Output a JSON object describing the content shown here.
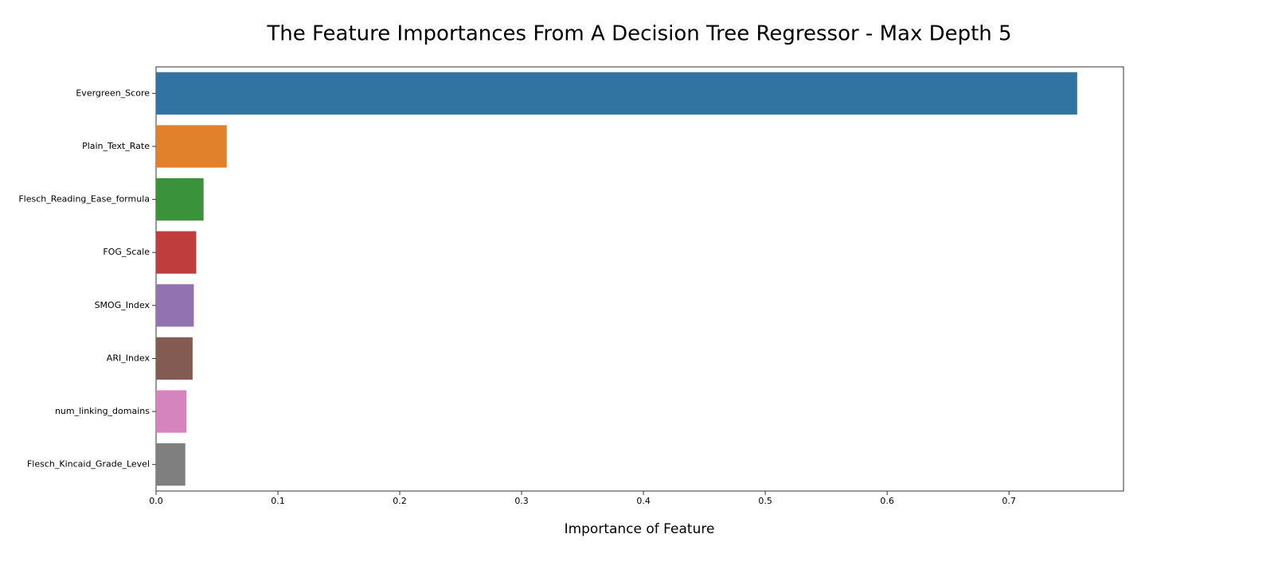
{
  "chart_data": {
    "type": "barh",
    "title": "The Feature Importances From A Decision Tree Regressor - Max Depth 5",
    "x_label": "Importance of Feature",
    "categories": [
      "Evergreen_Score",
      "Plain_Text_Rate",
      "Flesch_Reading_Ease_formula",
      "FOG_Scale",
      "SMOG_Index",
      "ARI_Index",
      "num_linking_domains",
      "Flesch_Kincaid_Grade_Level"
    ],
    "values": [
      0.756,
      0.058,
      0.039,
      0.033,
      0.031,
      0.03,
      0.025,
      0.024
    ],
    "colors": [
      "#3274a1",
      "#e1812c",
      "#3a923a",
      "#c03d3e",
      "#9372b2",
      "#845b53",
      "#d684bd",
      "#7f7f7f"
    ],
    "xlim": [
      0,
      0.794
    ],
    "xticks": [
      {
        "value": 0,
        "label": "0.0"
      },
      0.1,
      0.2,
      0.3,
      0.4,
      0.5,
      0.6,
      0.7
    ]
  }
}
